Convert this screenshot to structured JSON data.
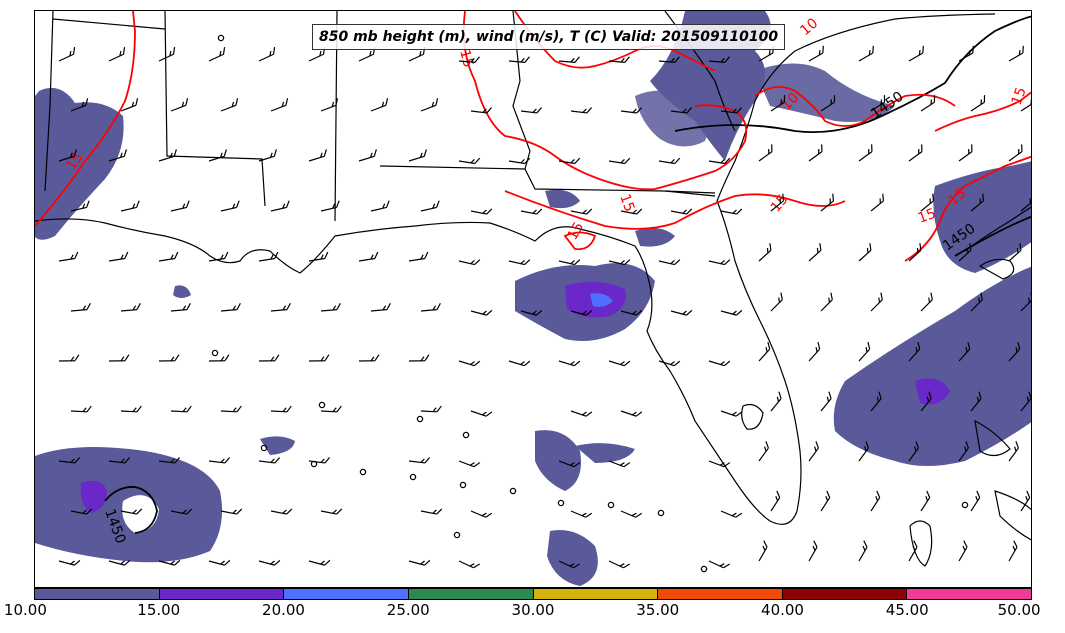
{
  "title": "850 mb height (m), wind (m/s), T (C) Valid: 201509110100",
  "colors": {
    "height_contour": "#000000",
    "temp_contour": "#ff0000",
    "coast": "#000000"
  },
  "colorbar": {
    "segments": [
      "#5a5a9a",
      "#6a28c8",
      "#4f6fff",
      "#2a8a50",
      "#d4b40c",
      "#f04a08",
      "#8c0008",
      "#f03c98"
    ],
    "ticks": [
      "10.00",
      "15.00",
      "20.00",
      "25.00",
      "30.00",
      "35.00",
      "40.00",
      "45.00",
      "50.00"
    ]
  },
  "contour_labels": {
    "temp": [
      "15",
      "15",
      "10",
      "15",
      "15",
      "15",
      "15",
      "15",
      "10",
      "15"
    ],
    "height": [
      "1450",
      "1450",
      "1450"
    ]
  }
}
